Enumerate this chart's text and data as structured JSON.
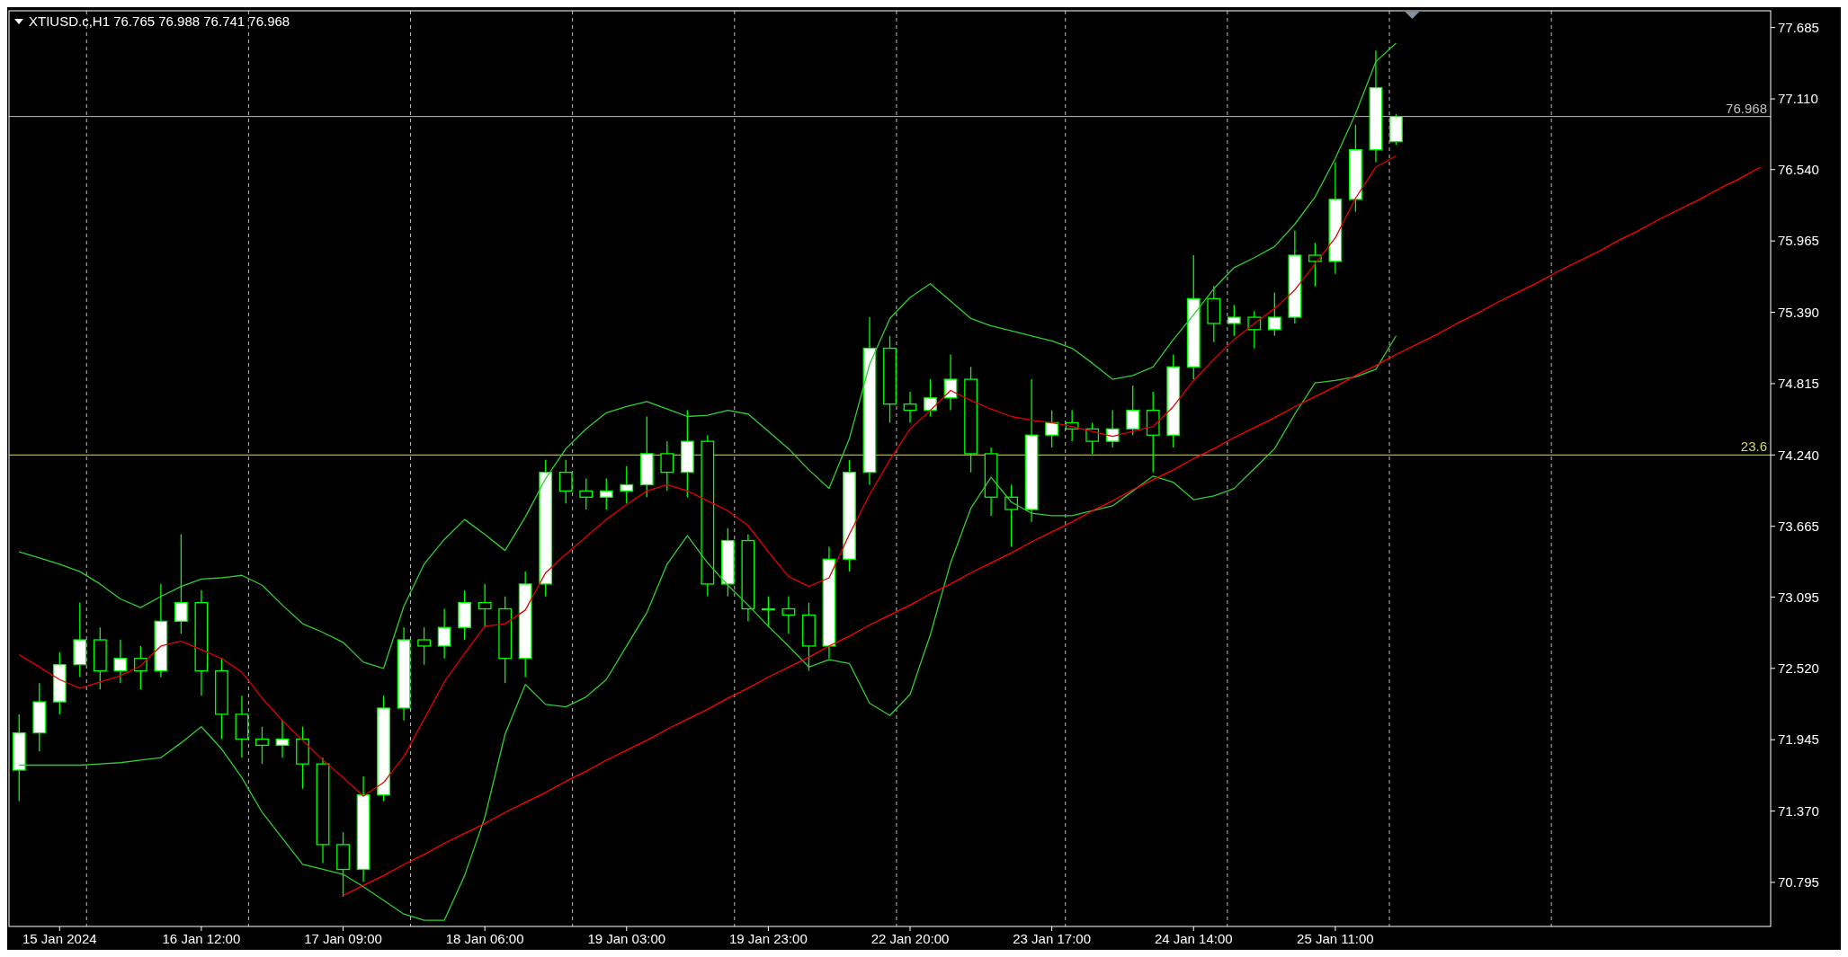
{
  "chart_data": {
    "type": "candlestick",
    "title": "XTIUSD.c,H1  76.765 76.988 76.741 76.968",
    "color": "#00ff00",
    "categories": [
      null,
      null,
      "15 Jan 2024",
      null,
      null,
      null,
      null,
      null,
      null,
      "16 Jan 12:00",
      null,
      null,
      null,
      null,
      null,
      null,
      "17 Jan 09:00",
      null,
      null,
      null,
      null,
      null,
      null,
      "18 Jan 06:00",
      null,
      null,
      null,
      null,
      null,
      null,
      "19 Jan 03:00",
      null,
      null,
      null,
      null,
      null,
      null,
      "19 Jan 23:00",
      null,
      null,
      null,
      null,
      null,
      null,
      "22 Jan 20:00",
      null,
      null,
      null,
      null,
      null,
      null,
      "23 Jan 17:00",
      null,
      null,
      null,
      null,
      null,
      null,
      "24 Jan 14:00",
      null,
      null,
      null,
      null,
      null,
      null,
      "25 Jan 11:00",
      null,
      null,
      null,
      null,
      null,
      null,
      null,
      null,
      null,
      null,
      null,
      null,
      null,
      null,
      null,
      null,
      null,
      null,
      null,
      null,
      null
    ],
    "ohlc": [
      [
        71.7,
        72.15,
        71.45,
        72.0
      ],
      [
        72.0,
        72.4,
        71.85,
        72.25
      ],
      [
        72.25,
        72.65,
        72.15,
        72.55
      ],
      [
        72.55,
        73.05,
        72.45,
        72.75
      ],
      [
        72.75,
        72.85,
        72.35,
        72.5
      ],
      [
        72.5,
        72.75,
        72.4,
        72.6
      ],
      [
        72.6,
        72.7,
        72.35,
        72.5
      ],
      [
        72.5,
        73.2,
        72.45,
        72.9
      ],
      [
        72.9,
        73.6,
        72.8,
        73.05
      ],
      [
        73.05,
        73.15,
        72.3,
        72.5
      ],
      [
        72.5,
        72.6,
        71.95,
        72.15
      ],
      [
        72.15,
        72.3,
        71.8,
        71.95
      ],
      [
        71.95,
        72.05,
        71.75,
        71.9
      ],
      [
        71.9,
        72.1,
        71.8,
        71.95
      ],
      [
        71.95,
        72.05,
        71.55,
        71.75
      ],
      [
        71.75,
        71.8,
        70.95,
        71.1
      ],
      [
        71.1,
        71.2,
        70.68,
        70.9
      ],
      [
        70.9,
        71.65,
        70.8,
        71.5
      ],
      [
        71.5,
        72.3,
        71.45,
        72.2
      ],
      [
        72.2,
        72.85,
        72.1,
        72.75
      ],
      [
        72.75,
        72.85,
        72.55,
        72.7
      ],
      [
        72.7,
        73.0,
        72.6,
        72.85
      ],
      [
        72.85,
        73.15,
        72.75,
        73.05
      ],
      [
        73.05,
        73.2,
        72.85,
        73.0
      ],
      [
        73.0,
        73.1,
        72.4,
        72.6
      ],
      [
        72.6,
        73.3,
        72.45,
        73.2
      ],
      [
        73.2,
        74.2,
        73.1,
        74.1
      ],
      [
        74.1,
        74.2,
        73.85,
        73.95
      ],
      [
        73.95,
        74.05,
        73.8,
        73.9
      ],
      [
        73.9,
        74.05,
        73.8,
        73.95
      ],
      [
        73.95,
        74.15,
        73.85,
        74.0
      ],
      [
        74.0,
        74.55,
        73.9,
        74.25
      ],
      [
        74.25,
        74.35,
        73.95,
        74.1
      ],
      [
        74.1,
        74.6,
        73.9,
        74.35
      ],
      [
        74.35,
        74.4,
        73.1,
        73.2
      ],
      [
        73.2,
        73.65,
        73.1,
        73.55
      ],
      [
        73.55,
        73.6,
        72.9,
        73.0
      ],
      [
        73.0,
        73.1,
        72.85,
        73.0
      ],
      [
        73.0,
        73.1,
        72.8,
        72.95
      ],
      [
        72.95,
        73.05,
        72.5,
        72.7
      ],
      [
        72.7,
        73.5,
        72.6,
        73.4
      ],
      [
        73.4,
        74.2,
        73.3,
        74.1
      ],
      [
        74.1,
        75.35,
        74.0,
        75.1
      ],
      [
        75.1,
        75.2,
        74.5,
        74.65
      ],
      [
        74.65,
        74.75,
        74.5,
        74.6
      ],
      [
        74.6,
        74.85,
        74.55,
        74.7
      ],
      [
        74.7,
        75.05,
        74.6,
        74.85
      ],
      [
        74.85,
        74.95,
        74.1,
        74.25
      ],
      [
        74.25,
        74.3,
        73.75,
        73.9
      ],
      [
        73.9,
        74.0,
        73.5,
        73.8
      ],
      [
        73.8,
        74.85,
        73.7,
        74.4
      ],
      [
        74.4,
        74.6,
        74.3,
        74.5
      ],
      [
        74.5,
        74.6,
        74.35,
        74.45
      ],
      [
        74.45,
        74.5,
        74.25,
        74.35
      ],
      [
        74.35,
        74.6,
        74.3,
        74.45
      ],
      [
        74.45,
        74.8,
        74.4,
        74.6
      ],
      [
        74.6,
        74.75,
        74.1,
        74.4
      ],
      [
        74.4,
        75.05,
        74.3,
        74.95
      ],
      [
        74.95,
        75.85,
        74.85,
        75.5
      ],
      [
        75.5,
        75.6,
        75.15,
        75.3
      ],
      [
        75.3,
        75.45,
        75.2,
        75.35
      ],
      [
        75.35,
        75.4,
        75.1,
        75.25
      ],
      [
        75.25,
        75.55,
        75.2,
        75.35
      ],
      [
        75.35,
        76.05,
        75.3,
        75.85
      ],
      [
        75.85,
        75.95,
        75.6,
        75.8
      ],
      [
        75.8,
        76.6,
        75.7,
        76.3
      ],
      [
        76.3,
        76.9,
        76.2,
        76.7
      ],
      [
        76.7,
        77.5,
        76.6,
        77.2
      ],
      [
        76.765,
        76.988,
        76.741,
        76.968
      ],
      null,
      null,
      null,
      null,
      null,
      null,
      null,
      null,
      null,
      null,
      null,
      null,
      null,
      null,
      null,
      null,
      null,
      null
    ],
    "series": [
      {
        "type": "line",
        "color": "#e00000",
        "values": [
          72.63,
          72.53,
          72.43,
          72.36,
          72.41,
          72.46,
          72.54,
          72.7,
          72.74,
          72.67,
          72.6,
          72.49,
          72.28,
          72.1,
          71.94,
          71.78,
          71.64,
          71.49,
          71.6,
          71.81,
          72.11,
          72.41,
          72.64,
          72.86,
          72.88,
          72.99,
          73.29,
          73.44,
          73.58,
          73.72,
          73.84,
          73.95,
          74.0,
          73.95,
          73.87,
          73.79,
          73.67,
          73.46,
          73.26,
          73.18,
          73.25,
          73.6,
          73.92,
          74.2,
          74.45,
          74.6,
          74.76,
          74.68,
          74.61,
          74.55,
          74.52,
          74.5,
          74.47,
          74.43,
          74.39,
          74.43,
          74.47,
          74.63,
          74.84,
          75.01,
          75.17,
          75.3,
          75.42,
          75.57,
          75.78,
          75.99,
          76.31,
          76.56,
          76.65,
          null,
          null,
          null,
          null,
          null,
          null,
          null,
          null,
          null,
          null,
          null,
          null,
          null,
          null,
          null,
          null,
          null,
          null
        ]
      },
      {
        "type": "line",
        "color": "#32cd32",
        "values": [
          73.46,
          73.41,
          73.36,
          73.3,
          73.2,
          73.08,
          73.01,
          73.1,
          73.18,
          73.24,
          73.25,
          73.27,
          73.19,
          73.03,
          72.88,
          72.81,
          72.73,
          72.57,
          72.52,
          73.02,
          73.36,
          73.56,
          73.72,
          73.6,
          73.47,
          73.74,
          74.05,
          74.29,
          74.45,
          74.58,
          74.63,
          74.67,
          74.61,
          74.55,
          74.56,
          74.6,
          74.57,
          74.43,
          74.29,
          74.12,
          73.97,
          74.37,
          74.97,
          75.34,
          75.51,
          75.62,
          75.48,
          75.34,
          75.28,
          75.24,
          75.2,
          75.16,
          75.1,
          74.98,
          74.85,
          74.88,
          74.95,
          75.17,
          75.37,
          75.58,
          75.75,
          75.83,
          75.92,
          76.1,
          76.32,
          76.63,
          76.99,
          77.41,
          77.56,
          null,
          null,
          null,
          null,
          null,
          null,
          null,
          null,
          null,
          null,
          null,
          null,
          null,
          null,
          null,
          null,
          null,
          null
        ]
      },
      {
        "type": "line",
        "color": "#32cd32",
        "values": [
          71.74,
          71.74,
          71.74,
          71.74,
          71.75,
          71.76,
          71.78,
          71.8,
          71.92,
          72.05,
          71.87,
          71.64,
          71.36,
          71.15,
          70.94,
          70.9,
          70.86,
          70.76,
          70.65,
          70.54,
          70.49,
          70.49,
          70.85,
          71.32,
          71.99,
          72.39,
          72.23,
          72.21,
          72.29,
          72.43,
          72.7,
          72.97,
          73.36,
          73.59,
          73.37,
          73.19,
          73.03,
          72.86,
          72.7,
          72.53,
          72.59,
          72.56,
          72.24,
          72.14,
          72.31,
          72.79,
          73.37,
          73.81,
          74.06,
          73.86,
          73.77,
          73.75,
          73.75,
          73.79,
          73.83,
          73.95,
          74.07,
          74.02,
          73.88,
          73.91,
          73.97,
          74.13,
          74.29,
          74.57,
          74.82,
          74.84,
          74.87,
          74.93,
          75.2,
          null,
          null,
          null,
          null,
          null,
          null,
          null,
          null,
          null,
          null,
          null,
          null,
          null,
          null,
          null,
          null,
          null,
          null
        ]
      },
      {
        "type": "line",
        "color": "#ff0000",
        "values": [
          null,
          null,
          null,
          null,
          null,
          null,
          null,
          null,
          null,
          null,
          null,
          null,
          null,
          null,
          null,
          null,
          70.69,
          70.77,
          70.85,
          70.94,
          71.02,
          71.11,
          71.19,
          71.27,
          71.36,
          71.44,
          71.52,
          71.61,
          71.69,
          71.78,
          71.86,
          71.94,
          72.03,
          72.11,
          72.19,
          72.28,
          72.36,
          72.45,
          72.53,
          72.61,
          72.7,
          72.78,
          72.87,
          72.95,
          73.03,
          73.12,
          73.2,
          73.29,
          73.37,
          73.45,
          73.54,
          73.62,
          73.7,
          73.79,
          73.87,
          73.96,
          74.04,
          74.12,
          74.21,
          74.29,
          74.38,
          74.46,
          74.54,
          74.63,
          74.71,
          74.79,
          74.88,
          74.96,
          75.05,
          75.13,
          75.21,
          75.3,
          75.38,
          75.47,
          75.55,
          75.63,
          75.72,
          75.8,
          75.88,
          75.97,
          76.05,
          76.14,
          76.22,
          76.3,
          76.39,
          76.47,
          76.56
        ]
      }
    ],
    "ylim": [
      70.44,
      77.82
    ],
    "yticks": [
      70.795,
      {
        "value": 71.37,
        "label": "71.370"
      },
      71.945,
      {
        "value": 72.52,
        "label": "72.520"
      },
      73.095,
      73.665,
      {
        "value": 74.24,
        "label": "74.240"
      },
      74.815,
      {
        "value": 75.39,
        "label": "75.390"
      },
      75.965,
      {
        "value": 76.54,
        "label": "76.540"
      },
      {
        "value": 77.11,
        "label": "77.110"
      },
      77.685
    ],
    "annotations": [
      {
        "text": "23.6",
        "y": 74.24
      }
    ],
    "ref_lines": [
      {
        "axis": "y",
        "value": 76.968,
        "label": "76.968",
        "color": "#c0c0c0"
      },
      {
        "axis": "y",
        "value": 74.24,
        "color": "#d8d870"
      }
    ]
  }
}
